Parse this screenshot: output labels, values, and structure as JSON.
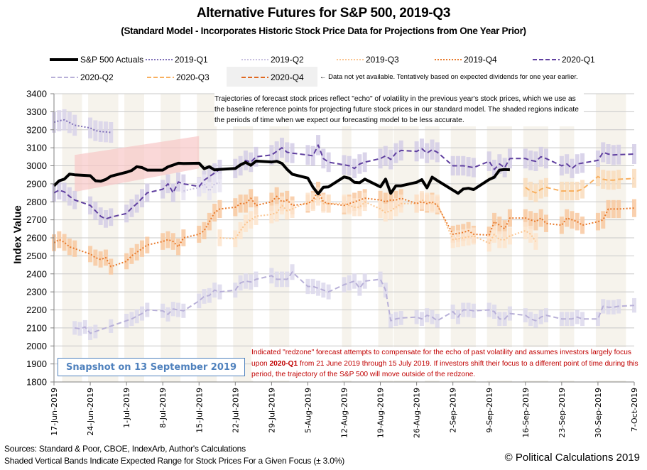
{
  "chart_data": {
    "type": "line",
    "title": "Alternative Futures for S&P 500, 2019-Q3",
    "subtitle": "(Standard Model - Incorporates Historic Stock Price Data for Projections from One Year Prior)",
    "xlabel": "",
    "ylabel": "Index Value",
    "ylim": [
      1800,
      3400
    ],
    "yticks": [
      1800,
      1900,
      2000,
      2100,
      2200,
      2300,
      2400,
      2500,
      2600,
      2700,
      2800,
      2900,
      3000,
      3100,
      3200,
      3300,
      3400
    ],
    "xtick_labels": [
      "17-Jun-2019",
      "24-Jun-2019",
      "1-Jul-2019",
      "8-Jul-2019",
      "15-Jul-2019",
      "22-Jul-2019",
      "29-Jul-2019",
      "5-Aug-2019",
      "12-Aug-2019",
      "19-Aug-2019",
      "26-Aug-2019",
      "2-Sep-2019",
      "9-Sep-2019",
      "16-Sep-2019",
      "23-Sep-2019",
      "30-Sep-2019",
      "7-Oct-2019"
    ],
    "x_domain_days": [
      0,
      112
    ],
    "grid": true,
    "legend_position": "top",
    "band_pct": 3.0,
    "legend": [
      {
        "name": "S&P 500 Actuals",
        "color": "#000000",
        "style": "solid-thick"
      },
      {
        "name": "2019-Q1",
        "color": "#7f6fb8",
        "style": "dotted"
      },
      {
        "name": "2019-Q2",
        "color": "#c8c0e0",
        "style": "dotted"
      },
      {
        "name": "2019-Q3",
        "color": "#fbc590",
        "style": "dotted"
      },
      {
        "name": "2019-Q4",
        "color": "#e87a2c",
        "style": "dotted"
      },
      {
        "name": "2020-Q1",
        "color": "#6040a0",
        "style": "dashed"
      },
      {
        "name": "2020-Q2",
        "color": "#b8b0d8",
        "style": "dashed"
      },
      {
        "name": "2020-Q3",
        "color": "#f8b060",
        "style": "dashed"
      },
      {
        "name": "2020-Q4",
        "color": "#e06820",
        "style": "dashed"
      }
    ],
    "legend_note": "← Data not yet available.  Tentatively based on expected dividends for one year earlier.",
    "redzone": {
      "label": "redzone",
      "start_day": 4,
      "end_day": 28,
      "lower_start": 2855,
      "lower_end": 2985,
      "upper_start": 3060,
      "upper_end": 3165,
      "color": "#f8c8c8"
    },
    "series": [
      {
        "name": "S&P 500 Actuals",
        "days": [
          0,
          1,
          2,
          3,
          4,
          7,
          8,
          9,
          10,
          11,
          14,
          15,
          16,
          17,
          18,
          21,
          22,
          23,
          24,
          25,
          28,
          29,
          30,
          31,
          32,
          35,
          36,
          37,
          38,
          39,
          42,
          43,
          44,
          45,
          46,
          49,
          50,
          51,
          52,
          53,
          56,
          57,
          58,
          59,
          60,
          63,
          64,
          65,
          66,
          67,
          70,
          71,
          72,
          73,
          74,
          78,
          79,
          80,
          81,
          84,
          85,
          86,
          87,
          88
        ],
        "values": [
          2889,
          2917,
          2926,
          2954,
          2950,
          2945,
          2917,
          2914,
          2924,
          2942,
          2964,
          2974,
          2995,
          2990,
          2976,
          2976,
          2994,
          3004,
          3014,
          3013,
          3014,
          2984,
          2995,
          2977,
          2980,
          2985,
          3005,
          3019,
          3003,
          3026,
          3021,
          3025,
          3013,
          2980,
          2953,
          2932,
          2881,
          2844,
          2881,
          2883,
          2938,
          2931,
          2908,
          2906,
          2926,
          2883,
          2926,
          2847,
          2889,
          2889,
          2908,
          2923,
          2878,
          2937,
          2918,
          2847,
          2871,
          2875,
          2868,
          2924,
          2937,
          2976,
          2979,
          2978
        ]
      },
      {
        "name": "2019-Q1",
        "days": [
          0,
          1,
          2,
          3,
          4,
          7,
          8,
          9,
          10,
          11
        ],
        "values": [
          3242,
          3250,
          3255,
          3240,
          3225,
          3210,
          3195,
          3190,
          3188,
          3185
        ]
      },
      {
        "name": "2020-Q1",
        "days": [
          0,
          1,
          2,
          3,
          4,
          7,
          8,
          9,
          10,
          11,
          14,
          15,
          16,
          17,
          18,
          21,
          22,
          23,
          24,
          25,
          28,
          29,
          30,
          31,
          32,
          35,
          36,
          37,
          38,
          39,
          42,
          43,
          44,
          45,
          46,
          49,
          50,
          51,
          52,
          53,
          56,
          57,
          58,
          59,
          60,
          63,
          64,
          65,
          66,
          67,
          70,
          71,
          72,
          73,
          74,
          77,
          78,
          79,
          80,
          81,
          84,
          85,
          86,
          87,
          88,
          91,
          92,
          93,
          94,
          95,
          98,
          99,
          100,
          101,
          102,
          105,
          106,
          107,
          108,
          109,
          112
        ],
        "values": [
          2850,
          2865,
          2855,
          2830,
          2810,
          2780,
          2750,
          2720,
          2705,
          2715,
          2735,
          2765,
          2790,
          2820,
          2850,
          2870,
          2900,
          2850,
          2910,
          2900,
          2885,
          2920,
          2940,
          2960,
          2980,
          2985,
          3000,
          3030,
          3020,
          3050,
          3060,
          3080,
          3100,
          3075,
          3070,
          3060,
          3055,
          3115,
          3040,
          3020,
          3005,
          3000,
          2985,
          3010,
          3020,
          3040,
          3055,
          3035,
          3070,
          3085,
          3080,
          3095,
          3070,
          3090,
          3075,
          3000,
          3000,
          3000,
          2995,
          2990,
          3025,
          2980,
          3010,
          2990,
          3040,
          3040,
          3030,
          3025,
          3050,
          3040,
          3000,
          3010,
          2985,
          3010,
          3015,
          3030,
          3075,
          3065,
          3060,
          3062,
          3065
        ]
      },
      {
        "name": "2019-Q4",
        "days": [
          0,
          1,
          2,
          3,
          4,
          7,
          8,
          9,
          10,
          11,
          14,
          15,
          16,
          17,
          18,
          21,
          22,
          23,
          24,
          25,
          28,
          29,
          30,
          31,
          32,
          35,
          36,
          37,
          38,
          39,
          42,
          43,
          44,
          45,
          46,
          49,
          50,
          51,
          52,
          53,
          56,
          57,
          58,
          59,
          60,
          63,
          64,
          65,
          66,
          67,
          70,
          71,
          72,
          73,
          74,
          77,
          78,
          79,
          80,
          81,
          84,
          85,
          86,
          87,
          88,
          91,
          92,
          93,
          94,
          95,
          98,
          99,
          100,
          101,
          102,
          105,
          106,
          107,
          108,
          109,
          112
        ],
        "values": [
          2573,
          2590,
          2575,
          2550,
          2540,
          2510,
          2490,
          2480,
          2490,
          2440,
          2470,
          2500,
          2520,
          2540,
          2560,
          2580,
          2590,
          2580,
          2550,
          2600,
          2620,
          2640,
          2690,
          2740,
          2760,
          2770,
          2790,
          2790,
          2820,
          2780,
          2800,
          2830,
          2800,
          2810,
          2780,
          2790,
          2810,
          2860,
          2800,
          2790,
          2780,
          2790,
          2800,
          2810,
          2820,
          2810,
          2800,
          2810,
          2810,
          2820,
          2790,
          2800,
          2790,
          2800,
          2780,
          2620,
          2625,
          2630,
          2640,
          2620,
          2615,
          2690,
          2670,
          2650,
          2710,
          2710,
          2700,
          2690,
          2710,
          2680,
          2670,
          2710,
          2700,
          2690,
          2670,
          2690,
          2700,
          2760,
          2760,
          2760,
          2765
        ]
      },
      {
        "name": "2019-Q3",
        "days": [
          32,
          35,
          36,
          37,
          38,
          39,
          42,
          43,
          44,
          45,
          46,
          49,
          50,
          51,
          52,
          53,
          56,
          57,
          58,
          59,
          60,
          63,
          64,
          65,
          66,
          67,
          70,
          71,
          72,
          73,
          74,
          77,
          78,
          79,
          80,
          81,
          84,
          85,
          86,
          87,
          88,
          91,
          92,
          93
        ],
        "values": [
          2600,
          2595,
          2640,
          2680,
          2700,
          2720,
          2730,
          2740,
          2780,
          2750,
          2760,
          2800,
          2800,
          2830,
          2790,
          2790,
          2790,
          2780,
          2770,
          2770,
          2800,
          2760,
          2740,
          2750,
          2770,
          2790,
          2790,
          2810,
          2800,
          2790,
          2790,
          2590,
          2595,
          2600,
          2605,
          2610,
          2570,
          2620,
          2590,
          2590,
          2610,
          2640,
          2620,
          2580
        ]
      },
      {
        "name": "2019-Q2",
        "days": [
          25,
          28,
          29,
          30,
          31,
          32
        ],
        "values": [
          2860,
          2880,
          2900,
          2860,
          2900,
          2905
        ]
      },
      {
        "name": "2020-Q2",
        "days": [
          4,
          5,
          6,
          7,
          8,
          11,
          14,
          15,
          16,
          17,
          18,
          21,
          22,
          23,
          24,
          25,
          28,
          29,
          30,
          31,
          32,
          35,
          36,
          37,
          38,
          39,
          42,
          43,
          44,
          45,
          46,
          49,
          50,
          51,
          52,
          53,
          56,
          57,
          58,
          59,
          60,
          63,
          64,
          65,
          66,
          67,
          70,
          71,
          72,
          73,
          74,
          77,
          78,
          79,
          80,
          81,
          84,
          85,
          86,
          87,
          88,
          91,
          92,
          93,
          94,
          95,
          98,
          99,
          100,
          101,
          102,
          105,
          106,
          107,
          108,
          109,
          112
        ],
        "values": [
          2100,
          2095,
          2105,
          2070,
          2080,
          2110,
          2140,
          2150,
          2165,
          2180,
          2200,
          2195,
          2175,
          2205,
          2200,
          2195,
          2250,
          2275,
          2280,
          2310,
          2300,
          2310,
          2350,
          2360,
          2355,
          2370,
          2390,
          2370,
          2370,
          2370,
          2410,
          2330,
          2330,
          2320,
          2310,
          2300,
          2340,
          2350,
          2360,
          2320,
          2360,
          2370,
          2310,
          2140,
          2150,
          2155,
          2160,
          2150,
          2170,
          2160,
          2140,
          2190,
          2160,
          2200,
          2200,
          2195,
          2200,
          2190,
          2150,
          2150,
          2180,
          2170,
          2150,
          2140,
          2160,
          2170,
          2150,
          2150,
          2150,
          2160,
          2150,
          2150,
          2220,
          2215,
          2215,
          2220,
          2225
        ]
      },
      {
        "name": "2020-Q3",
        "days": [
          91,
          92,
          93,
          94,
          95,
          98,
          99,
          100,
          101,
          102,
          105,
          106,
          107,
          108,
          109,
          112
        ],
        "values": [
          2880,
          2860,
          2850,
          2870,
          2880,
          2860,
          2860,
          2860,
          2860,
          2870,
          2940,
          2925,
          2920,
          2920,
          2925,
          2930
        ]
      }
    ],
    "shaded_regions_days": [
      [
        2,
        5
      ],
      [
        7,
        12
      ],
      [
        14,
        17
      ],
      [
        21,
        24
      ],
      [
        28,
        31
      ],
      [
        35,
        38
      ],
      [
        42,
        45
      ],
      [
        56,
        57
      ],
      [
        63,
        65
      ],
      [
        66,
        70
      ],
      [
        72,
        74
      ],
      [
        77,
        81
      ],
      [
        84,
        88
      ],
      [
        91,
        95
      ],
      [
        98,
        100
      ],
      [
        105,
        110
      ]
    ]
  },
  "notes": {
    "top": "Trajectories of forecast stock prices reflect \"echo\" of volatility in  the previous year's stock prices, which we use as the baseline reference points for projecting future stock prices in our standard model.   The shaded regions indicate the periods of time when we expect our forecasting model to be less accurate.",
    "red_part1": "Indicated \"redzone\" forecast attempts to compensate for the echo of past volatility and assumes investors largely focus upon ",
    "red_bold": "2020-Q1",
    "red_part2": " from 21 June 2019 through 15 July 2019.  If investors shift their focus to a different point of time during this period, the trajectory of the S&P 500 will move outside of the redzone."
  },
  "snapshot": "Snapshot on 13 September 2019",
  "footer": {
    "sources": "Sources: Standard & Poor, CBOE, IndexArb, Author's Calculations",
    "bands": "Shaded Vertical Bands Indicate Expected Range for Stock Prices For a Given Focus (± 3.0%)",
    "copyright": "© Political Calculations 2019"
  }
}
